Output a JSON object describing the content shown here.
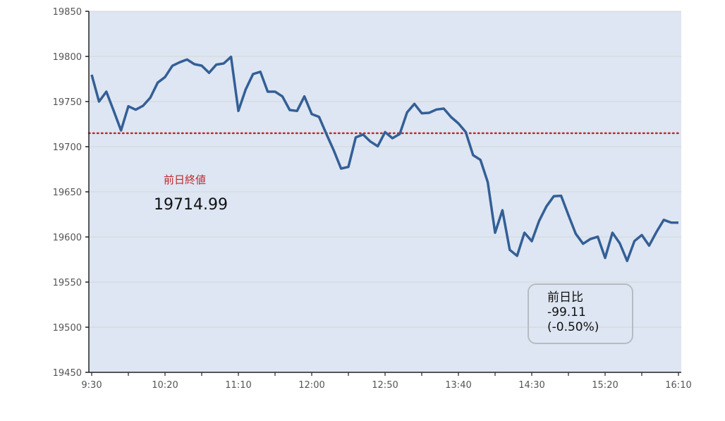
{
  "chart_data": {
    "type": "line",
    "title": "",
    "xlabel": "",
    "ylabel": "",
    "ylim": [
      19450,
      19850
    ],
    "yticks": [
      19450,
      19500,
      19550,
      19600,
      19650,
      19700,
      19750,
      19800,
      19850
    ],
    "xtick_labels": [
      "9:30",
      "10:20",
      "11:10",
      "12:00",
      "12:50",
      "13:40",
      "14:30",
      "15:20",
      "16:10"
    ],
    "grid": "horizontal",
    "x": [
      "9:30",
      "9:35",
      "9:40",
      "9:45",
      "9:50",
      "9:55",
      "10:00",
      "10:05",
      "10:10",
      "10:15",
      "10:20",
      "10:25",
      "10:30",
      "10:35",
      "10:40",
      "10:45",
      "10:50",
      "10:55",
      "11:00",
      "11:05",
      "11:10",
      "11:15",
      "11:20",
      "11:25",
      "11:30",
      "11:35",
      "11:40",
      "11:45",
      "11:50",
      "11:55",
      "12:00",
      "12:05",
      "12:10",
      "12:15",
      "12:20",
      "12:25",
      "12:30",
      "12:35",
      "12:40",
      "12:45",
      "12:50",
      "12:55",
      "13:00",
      "13:05",
      "13:10",
      "13:15",
      "13:20",
      "13:25",
      "13:30",
      "13:35",
      "13:40",
      "13:45",
      "13:50",
      "13:55",
      "14:00",
      "14:05",
      "14:10",
      "14:15",
      "14:20",
      "14:25",
      "14:30",
      "14:35",
      "14:40",
      "14:45",
      "14:50",
      "14:55",
      "15:00",
      "15:05",
      "15:10",
      "15:15",
      "15:20",
      "15:25",
      "15:30",
      "15:35",
      "15:40",
      "15:45",
      "15:50",
      "15:55",
      "16:00",
      "16:05",
      "16:10"
    ],
    "series": [
      {
        "values": [
          19779.7,
          19750.0,
          19760.9,
          19739.8,
          19718.0,
          19744.8,
          19740.9,
          19745.3,
          19754.4,
          19770.9,
          19777.1,
          19789.6,
          19793.5,
          19796.6,
          19791.4,
          19789.8,
          19781.8,
          19790.9,
          19792.2,
          19799.5,
          19739.6,
          19763.5,
          19780.5,
          19783.0,
          19760.9,
          19760.9,
          19755.7,
          19740.6,
          19739.6,
          19755.7,
          19736.2,
          19733.0,
          19714.1,
          19695.9,
          19675.8,
          19677.6,
          19710.2,
          19713.5,
          19705.7,
          19700.5,
          19716.2,
          19709.4,
          19714.1,
          19738.0,
          19747.4,
          19737.0,
          19737.5,
          19741.2,
          19742.2,
          19732.8,
          19725.8,
          19716.2,
          19690.6,
          19685.4,
          19660.7,
          19604.7,
          19629.5,
          19585.7,
          19579.1,
          19604.7,
          19595.3,
          19617.7,
          19633.8,
          19645.1,
          19645.6,
          19624.2,
          19603.4,
          19592.4,
          19597.7,
          19600.2,
          19576.8,
          19604.7,
          19593.0,
          19573.4,
          19595.5,
          19602.1,
          19590.4,
          19605.5,
          19618.9,
          19615.9,
          19615.88
        ],
        "color": "#345f96"
      }
    ],
    "reference_line": {
      "value": 19714.99,
      "color": "#c0282d",
      "style": "dotted"
    },
    "colors": {
      "plot_background": "#dde6f2",
      "grid": "#d5d5d5",
      "axis": "#222222"
    }
  },
  "annotations": {
    "prev_close_label": "前日終値",
    "prev_close_value": "19714.99",
    "change_label": "前日比",
    "change_value": "-99.11",
    "change_percent": "(-0.50%)"
  }
}
